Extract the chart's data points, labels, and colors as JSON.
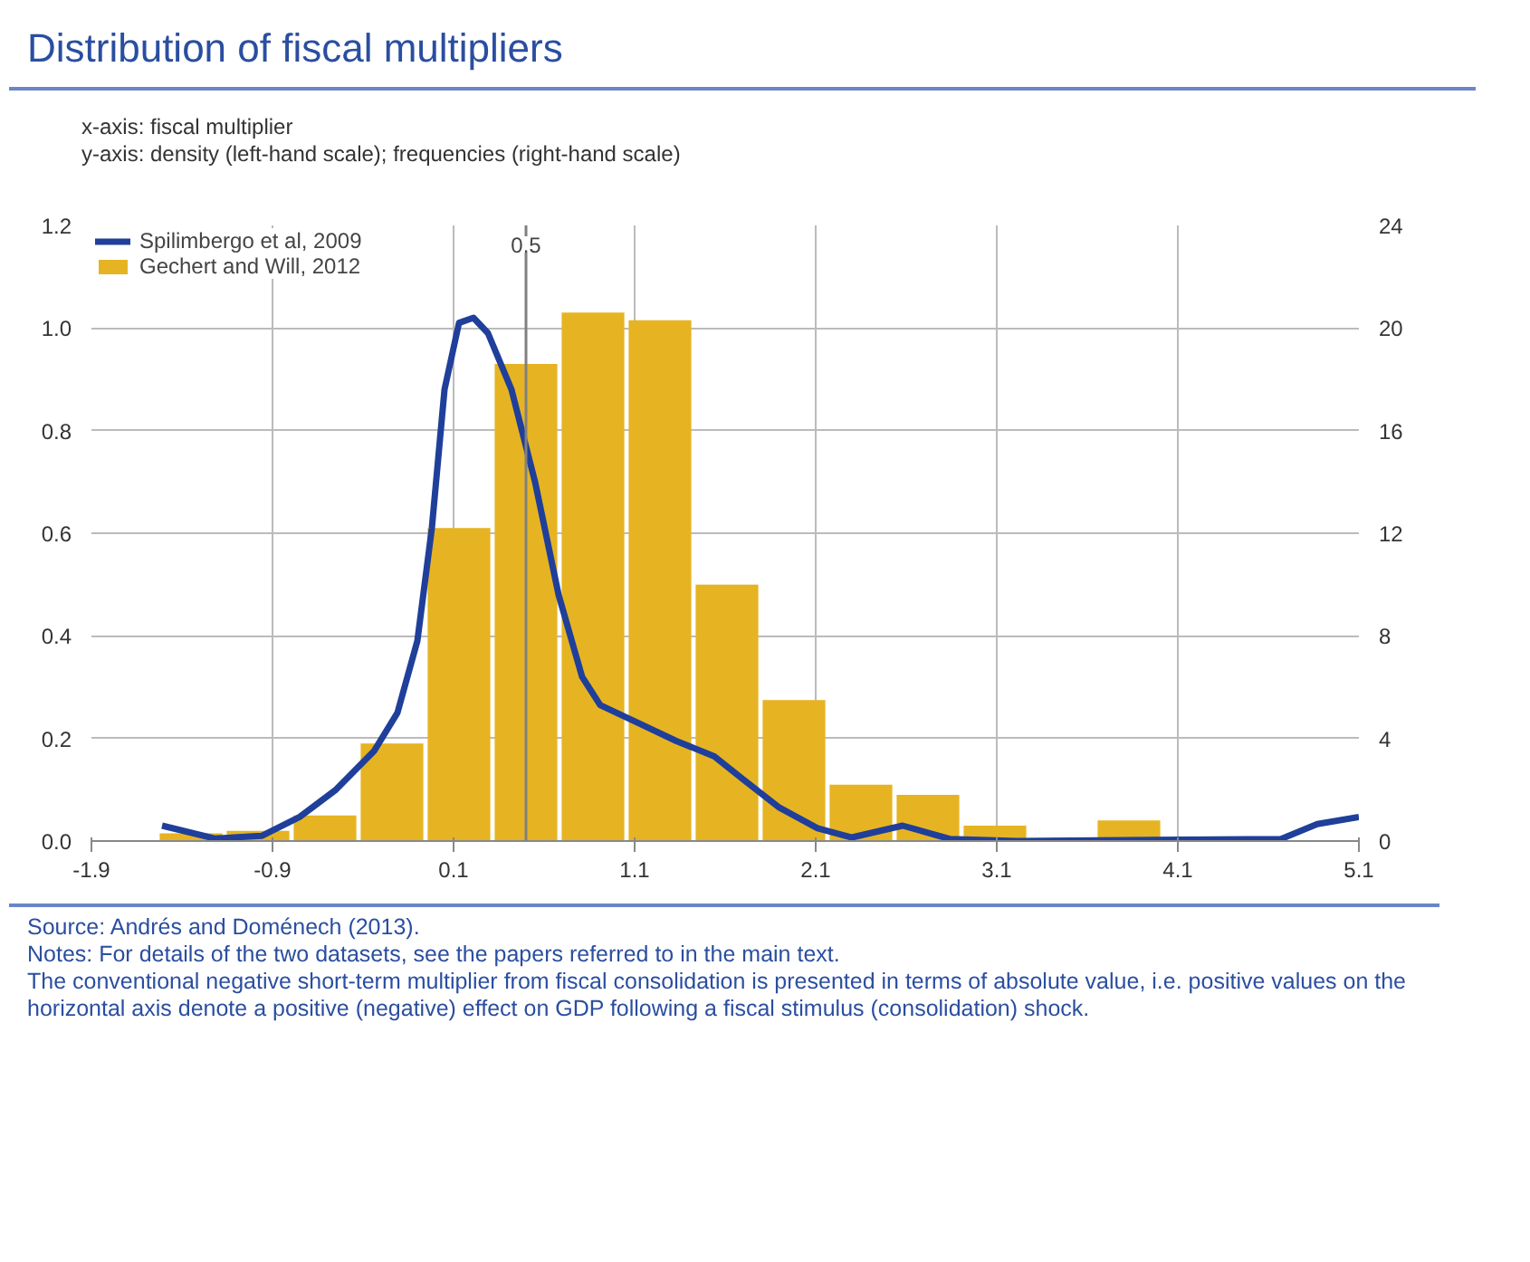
{
  "chart_data": {
    "type": "histogram",
    "title": "Distribution of fiscal multipliers",
    "series": [
      {
        "name": "Spilimbergo et al, 2009",
        "type": "line",
        "color": "#1f3f9a",
        "x": [
          -1.51,
          -1.22,
          -0.96,
          -0.75,
          -0.55,
          -0.34,
          -0.21,
          -0.1,
          -0.02,
          0.05,
          0.13,
          0.21,
          0.29,
          0.42,
          0.55,
          0.68,
          0.81,
          0.91,
          1.12,
          1.33,
          1.54,
          1.7,
          1.9,
          2.11,
          2.3,
          2.58,
          2.84,
          3.21,
          4.67,
          4.87,
          5.1
        ],
        "values": [
          0.03,
          0.005,
          0.01,
          0.047,
          0.1,
          0.175,
          0.25,
          0.39,
          0.61,
          0.88,
          1.01,
          1.02,
          0.99,
          0.88,
          0.7,
          0.48,
          0.32,
          0.265,
          0.23,
          0.195,
          0.165,
          0.12,
          0.065,
          0.025,
          0.007,
          0.03,
          0.004,
          0,
          0.004,
          0.033,
          0.047
        ]
      },
      {
        "name": "Gechert and Will, 2012",
        "type": "histogram",
        "axis": "y2",
        "color": "#e6b422",
        "bins": [
          -1.535,
          -1.165,
          -0.795,
          -0.425,
          -0.055,
          0.315,
          0.685,
          1.055,
          1.425,
          1.795,
          2.165,
          2.535,
          2.905,
          3.275,
          3.645,
          4.015
        ],
        "values": [
          0.3,
          0.4,
          1,
          3.8,
          12.2,
          18.6,
          20.6,
          20.3,
          10,
          5.5,
          2.2,
          1.8,
          0.6,
          0,
          0.8
        ]
      }
    ],
    "xlim": [
      -1.9,
      5.1
    ],
    "xticks": [
      -1.9,
      -0.9,
      0.1,
      1.1,
      2.1,
      3.1,
      4.1,
      5.1
    ],
    "ylim": [
      0,
      1.2
    ],
    "yticks": [
      {
        "value": 0,
        "label": "0.0"
      },
      0.2,
      0.4,
      0.6,
      0.8,
      {
        "value": 1,
        "label": "1.0"
      },
      1.2
    ],
    "y2lim": [
      0,
      24
    ],
    "y2ticks": [
      0,
      4,
      8,
      12,
      16,
      20,
      24
    ],
    "ref_lines": [
      {
        "axis": "x",
        "value": 0.5,
        "label": "0.5",
        "color": "#808080"
      }
    ],
    "grid": true,
    "legend": "top left",
    "annotations": [
      "x-axis: fiscal multiplier",
      "y-axis: density (left-hand scale); frequencies (right-hand scale)",
      "Source: Andrés and Doménech (2013).",
      "Notes: For details of the two datasets, see the papers referred to in the main text.",
      "The conventional negative short-term multiplier from fiscal consolidation is presented in terms of absolute value, i.e. positive values on the horizontal axis denote a positive (negative) effect on GDP following a fiscal stimulus (consolidation) shock."
    ]
  }
}
